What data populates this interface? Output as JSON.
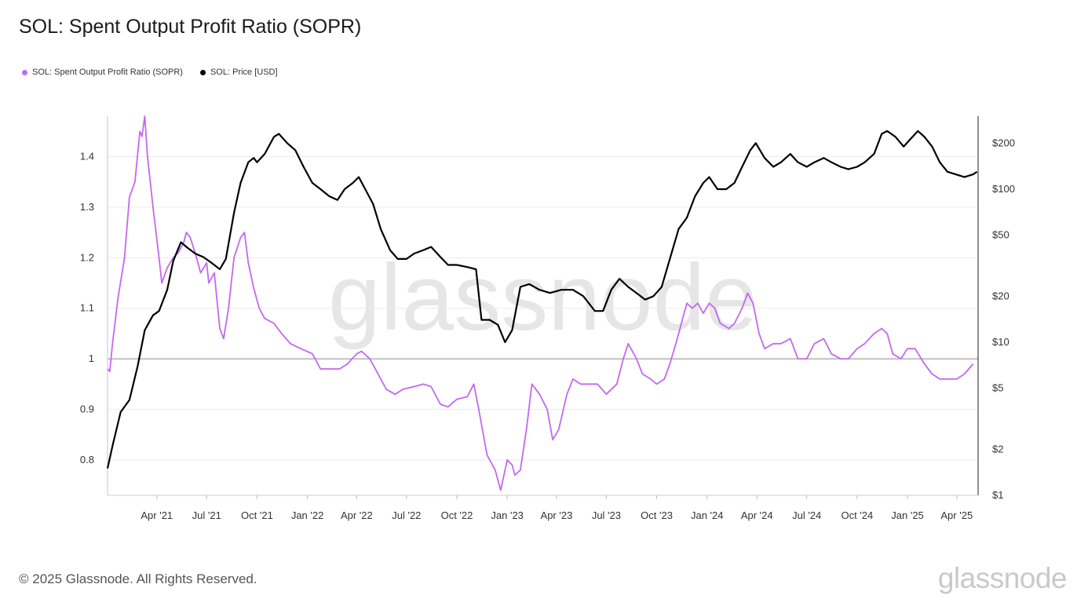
{
  "page": {
    "title": "SOL: Spent Output Profit Ratio (SOPR)",
    "footer": "© 2025 Glassnode. All Rights Reserved.",
    "brand": "glassnode",
    "watermark": "glassnode"
  },
  "legend": [
    {
      "name": "SOL: Spent Output Profit Ratio (SOPR)",
      "color": "#c368f0"
    },
    {
      "name": "SOL: Price [USD]",
      "color": "#000000"
    }
  ],
  "chart_data": {
    "type": "line",
    "x_range": [
      "2021-01-01",
      "2025-05-10"
    ],
    "x_ticks": [
      "Apr '21",
      "Jul '21",
      "Oct '21",
      "Jan '22",
      "Apr '22",
      "Jul '22",
      "Oct '22",
      "Jan '23",
      "Apr '23",
      "Jul '23",
      "Oct '23",
      "Jan '24",
      "Apr '24",
      "Jul '24",
      "Oct '24",
      "Jan '25",
      "Apr '25"
    ],
    "x_tick_dates": [
      "2021-04-01",
      "2021-07-01",
      "2021-10-01",
      "2022-01-01",
      "2022-04-01",
      "2022-07-01",
      "2022-10-01",
      "2023-01-01",
      "2023-04-01",
      "2023-07-01",
      "2023-10-01",
      "2024-01-01",
      "2024-04-01",
      "2024-07-01",
      "2024-10-01",
      "2025-01-01",
      "2025-04-01"
    ],
    "left_axis": {
      "scale": "linear",
      "ylim": [
        0.73,
        1.48
      ],
      "ticks": [
        0.8,
        0.9,
        1,
        1.1,
        1.2,
        1.3,
        1.4
      ],
      "tick_labels": [
        "0.8",
        "0.9",
        "1",
        "1.1",
        "1.2",
        "1.3",
        "1.4"
      ]
    },
    "right_axis": {
      "scale": "log",
      "ylim": [
        1,
        300
      ],
      "ticks": [
        1,
        2,
        5,
        10,
        20,
        50,
        100,
        200
      ],
      "tick_labels": [
        "$1",
        "$2",
        "$5",
        "$10",
        "$20",
        "$50",
        "$100",
        "$200"
      ]
    },
    "reference_line": 1,
    "grid": true,
    "legend_position": "top-left",
    "series": [
      {
        "name": "SOL: Spent Output Profit Ratio (SOPR)",
        "axis": "left",
        "color": "#c368f0",
        "points": [
          [
            "2021-01-01",
            0.98
          ],
          [
            "2021-01-05",
            0.975
          ],
          [
            "2021-01-10",
            1.03
          ],
          [
            "2021-01-20",
            1.12
          ],
          [
            "2021-02-01",
            1.2
          ],
          [
            "2021-02-10",
            1.32
          ],
          [
            "2021-02-20",
            1.35
          ],
          [
            "2021-03-01",
            1.45
          ],
          [
            "2021-03-05",
            1.44
          ],
          [
            "2021-03-10",
            1.48
          ],
          [
            "2021-03-15",
            1.4
          ],
          [
            "2021-03-25",
            1.3
          ],
          [
            "2021-04-05",
            1.2
          ],
          [
            "2021-04-10",
            1.15
          ],
          [
            "2021-04-20",
            1.18
          ],
          [
            "2021-05-01",
            1.2
          ],
          [
            "2021-05-10",
            1.21
          ],
          [
            "2021-05-20",
            1.23
          ],
          [
            "2021-05-25",
            1.25
          ],
          [
            "2021-06-01",
            1.24
          ],
          [
            "2021-06-10",
            1.21
          ],
          [
            "2021-06-20",
            1.17
          ],
          [
            "2021-07-01",
            1.19
          ],
          [
            "2021-07-05",
            1.15
          ],
          [
            "2021-07-15",
            1.17
          ],
          [
            "2021-07-25",
            1.06
          ],
          [
            "2021-08-01",
            1.04
          ],
          [
            "2021-08-10",
            1.1
          ],
          [
            "2021-08-20",
            1.2
          ],
          [
            "2021-09-01",
            1.24
          ],
          [
            "2021-09-08",
            1.25
          ],
          [
            "2021-09-15",
            1.19
          ],
          [
            "2021-09-25",
            1.14
          ],
          [
            "2021-10-05",
            1.1
          ],
          [
            "2021-10-15",
            1.08
          ],
          [
            "2021-11-01",
            1.07
          ],
          [
            "2021-11-15",
            1.05
          ],
          [
            "2021-12-01",
            1.03
          ],
          [
            "2021-12-20",
            1.02
          ],
          [
            "2022-01-10",
            1.01
          ],
          [
            "2022-01-25",
            0.98
          ],
          [
            "2022-02-10",
            0.98
          ],
          [
            "2022-03-01",
            0.98
          ],
          [
            "2022-03-15",
            0.99
          ],
          [
            "2022-04-01",
            1.01
          ],
          [
            "2022-04-10",
            1.015
          ],
          [
            "2022-04-25",
            1.0
          ],
          [
            "2022-05-10",
            0.97
          ],
          [
            "2022-05-25",
            0.94
          ],
          [
            "2022-06-10",
            0.93
          ],
          [
            "2022-06-25",
            0.94
          ],
          [
            "2022-07-15",
            0.945
          ],
          [
            "2022-08-01",
            0.95
          ],
          [
            "2022-08-15",
            0.945
          ],
          [
            "2022-09-01",
            0.91
          ],
          [
            "2022-09-15",
            0.905
          ],
          [
            "2022-10-01",
            0.92
          ],
          [
            "2022-10-20",
            0.925
          ],
          [
            "2022-11-01",
            0.95
          ],
          [
            "2022-11-10",
            0.9
          ],
          [
            "2022-11-25",
            0.81
          ],
          [
            "2022-12-10",
            0.78
          ],
          [
            "2022-12-20",
            0.74
          ],
          [
            "2023-01-01",
            0.8
          ],
          [
            "2023-01-10",
            0.79
          ],
          [
            "2023-01-15",
            0.77
          ],
          [
            "2023-01-25",
            0.78
          ],
          [
            "2023-02-05",
            0.86
          ],
          [
            "2023-02-15",
            0.95
          ],
          [
            "2023-03-01",
            0.93
          ],
          [
            "2023-03-15",
            0.9
          ],
          [
            "2023-03-25",
            0.84
          ],
          [
            "2023-04-05",
            0.86
          ],
          [
            "2023-04-20",
            0.93
          ],
          [
            "2023-05-01",
            0.96
          ],
          [
            "2023-05-15",
            0.95
          ],
          [
            "2023-06-01",
            0.95
          ],
          [
            "2023-06-15",
            0.95
          ],
          [
            "2023-07-01",
            0.93
          ],
          [
            "2023-07-20",
            0.95
          ],
          [
            "2023-08-01",
            1.0
          ],
          [
            "2023-08-10",
            1.03
          ],
          [
            "2023-08-25",
            1.0
          ],
          [
            "2023-09-05",
            0.97
          ],
          [
            "2023-09-20",
            0.96
          ],
          [
            "2023-10-01",
            0.95
          ],
          [
            "2023-10-15",
            0.96
          ],
          [
            "2023-10-25",
            0.99
          ],
          [
            "2023-11-05",
            1.03
          ],
          [
            "2023-11-15",
            1.07
          ],
          [
            "2023-11-25",
            1.11
          ],
          [
            "2023-12-05",
            1.1
          ],
          [
            "2023-12-15",
            1.11
          ],
          [
            "2023-12-25",
            1.09
          ],
          [
            "2024-01-05",
            1.11
          ],
          [
            "2024-01-15",
            1.1
          ],
          [
            "2024-01-25",
            1.07
          ],
          [
            "2024-02-10",
            1.06
          ],
          [
            "2024-02-20",
            1.07
          ],
          [
            "2024-03-05",
            1.1
          ],
          [
            "2024-03-15",
            1.13
          ],
          [
            "2024-03-25",
            1.11
          ],
          [
            "2024-04-05",
            1.05
          ],
          [
            "2024-04-15",
            1.02
          ],
          [
            "2024-05-01",
            1.03
          ],
          [
            "2024-05-15",
            1.03
          ],
          [
            "2024-06-01",
            1.04
          ],
          [
            "2024-06-15",
            1.0
          ],
          [
            "2024-07-01",
            1.0
          ],
          [
            "2024-07-15",
            1.03
          ],
          [
            "2024-08-01",
            1.04
          ],
          [
            "2024-08-15",
            1.01
          ],
          [
            "2024-09-01",
            1.0
          ],
          [
            "2024-09-15",
            1.0
          ],
          [
            "2024-10-01",
            1.02
          ],
          [
            "2024-10-15",
            1.03
          ],
          [
            "2024-11-01",
            1.05
          ],
          [
            "2024-11-15",
            1.06
          ],
          [
            "2024-11-25",
            1.05
          ],
          [
            "2024-12-05",
            1.01
          ],
          [
            "2024-12-20",
            1.0
          ],
          [
            "2025-01-01",
            1.02
          ],
          [
            "2025-01-15",
            1.02
          ],
          [
            "2025-02-01",
            0.99
          ],
          [
            "2025-02-15",
            0.97
          ],
          [
            "2025-03-01",
            0.96
          ],
          [
            "2025-03-15",
            0.96
          ],
          [
            "2025-04-01",
            0.96
          ],
          [
            "2025-04-15",
            0.97
          ],
          [
            "2025-05-01",
            0.99
          ]
        ]
      },
      {
        "name": "SOL: Price [USD]",
        "axis": "right",
        "color": "#000000",
        "points": [
          [
            "2021-01-01",
            1.5
          ],
          [
            "2021-01-10",
            2.1
          ],
          [
            "2021-01-25",
            3.5
          ],
          [
            "2021-02-10",
            4.2
          ],
          [
            "2021-02-25",
            7
          ],
          [
            "2021-03-10",
            12
          ],
          [
            "2021-03-25",
            15
          ],
          [
            "2021-04-05",
            16
          ],
          [
            "2021-04-20",
            22
          ],
          [
            "2021-05-01",
            34
          ],
          [
            "2021-05-15",
            45
          ],
          [
            "2021-05-25",
            42
          ],
          [
            "2021-06-10",
            38
          ],
          [
            "2021-06-25",
            36
          ],
          [
            "2021-07-10",
            33
          ],
          [
            "2021-07-25",
            30
          ],
          [
            "2021-08-05",
            35
          ],
          [
            "2021-08-20",
            70
          ],
          [
            "2021-09-01",
            110
          ],
          [
            "2021-09-15",
            150
          ],
          [
            "2021-09-25",
            160
          ],
          [
            "2021-10-01",
            150
          ],
          [
            "2021-10-15",
            170
          ],
          [
            "2021-11-01",
            220
          ],
          [
            "2021-11-10",
            230
          ],
          [
            "2021-11-25",
            200
          ],
          [
            "2021-12-10",
            180
          ],
          [
            "2021-12-25",
            140
          ],
          [
            "2022-01-10",
            110
          ],
          [
            "2022-01-25",
            100
          ],
          [
            "2022-02-10",
            90
          ],
          [
            "2022-02-25",
            85
          ],
          [
            "2022-03-10",
            100
          ],
          [
            "2022-03-25",
            110
          ],
          [
            "2022-04-05",
            120
          ],
          [
            "2022-04-20",
            95
          ],
          [
            "2022-05-01",
            80
          ],
          [
            "2022-05-15",
            55
          ],
          [
            "2022-06-01",
            40
          ],
          [
            "2022-06-15",
            35
          ],
          [
            "2022-07-01",
            35
          ],
          [
            "2022-07-15",
            38
          ],
          [
            "2022-08-01",
            40
          ],
          [
            "2022-08-15",
            42
          ],
          [
            "2022-09-01",
            36
          ],
          [
            "2022-09-15",
            32
          ],
          [
            "2022-10-01",
            32
          ],
          [
            "2022-10-20",
            31
          ],
          [
            "2022-11-05",
            30
          ],
          [
            "2022-11-15",
            14
          ],
          [
            "2022-11-30",
            14
          ],
          [
            "2022-12-15",
            13
          ],
          [
            "2022-12-28",
            10
          ],
          [
            "2023-01-10",
            12
          ],
          [
            "2023-01-25",
            23
          ],
          [
            "2023-02-10",
            24
          ],
          [
            "2023-03-01",
            22
          ],
          [
            "2023-03-20",
            21
          ],
          [
            "2023-04-10",
            22
          ],
          [
            "2023-05-01",
            22
          ],
          [
            "2023-05-20",
            20
          ],
          [
            "2023-06-10",
            16
          ],
          [
            "2023-06-25",
            16
          ],
          [
            "2023-07-10",
            22
          ],
          [
            "2023-07-25",
            26
          ],
          [
            "2023-08-10",
            23
          ],
          [
            "2023-08-25",
            21
          ],
          [
            "2023-09-10",
            19
          ],
          [
            "2023-09-25",
            20
          ],
          [
            "2023-10-10",
            23
          ],
          [
            "2023-10-25",
            35
          ],
          [
            "2023-11-10",
            55
          ],
          [
            "2023-11-25",
            65
          ],
          [
            "2023-12-10",
            90
          ],
          [
            "2023-12-25",
            110
          ],
          [
            "2024-01-05",
            120
          ],
          [
            "2024-01-20",
            100
          ],
          [
            "2024-02-05",
            100
          ],
          [
            "2024-02-20",
            110
          ],
          [
            "2024-03-05",
            140
          ],
          [
            "2024-03-20",
            180
          ],
          [
            "2024-03-30",
            200
          ],
          [
            "2024-04-15",
            160
          ],
          [
            "2024-05-01",
            140
          ],
          [
            "2024-05-15",
            150
          ],
          [
            "2024-06-01",
            170
          ],
          [
            "2024-06-15",
            150
          ],
          [
            "2024-07-01",
            140
          ],
          [
            "2024-07-15",
            150
          ],
          [
            "2024-08-01",
            160
          ],
          [
            "2024-08-15",
            150
          ],
          [
            "2024-09-01",
            140
          ],
          [
            "2024-09-15",
            135
          ],
          [
            "2024-10-01",
            140
          ],
          [
            "2024-10-15",
            150
          ],
          [
            "2024-11-01",
            170
          ],
          [
            "2024-11-15",
            230
          ],
          [
            "2024-11-25",
            240
          ],
          [
            "2024-12-10",
            220
          ],
          [
            "2024-12-25",
            190
          ],
          [
            "2025-01-05",
            210
          ],
          [
            "2025-01-20",
            240
          ],
          [
            "2025-02-01",
            220
          ],
          [
            "2025-02-15",
            190
          ],
          [
            "2025-03-01",
            150
          ],
          [
            "2025-03-15",
            130
          ],
          [
            "2025-03-30",
            125
          ],
          [
            "2025-04-15",
            120
          ],
          [
            "2025-05-01",
            125
          ],
          [
            "2025-05-08",
            130
          ]
        ]
      }
    ]
  }
}
